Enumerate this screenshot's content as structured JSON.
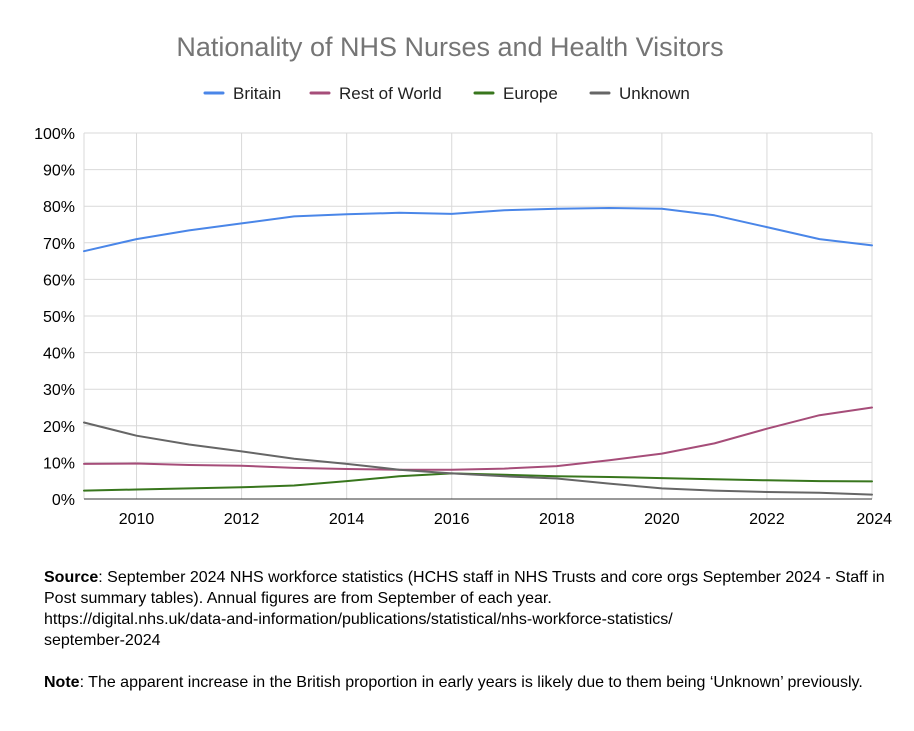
{
  "chart_data": {
    "type": "line",
    "title": "Nationality of NHS Nurses and Health Visitors",
    "xlabel": "",
    "ylabel": "",
    "x": [
      2009,
      2010,
      2011,
      2012,
      2013,
      2014,
      2015,
      2016,
      2017,
      2018,
      2019,
      2020,
      2021,
      2022,
      2023,
      2024
    ],
    "x_tick_labels": [
      "2010",
      "2012",
      "2014",
      "2016",
      "2018",
      "2020",
      "2022",
      "2024"
    ],
    "x_tick_values": [
      2010,
      2012,
      2014,
      2016,
      2018,
      2020,
      2022,
      2024
    ],
    "xlim": [
      2009,
      2024
    ],
    "y_tick_labels": [
      "0%",
      "10%",
      "20%",
      "30%",
      "40%",
      "50%",
      "60%",
      "70%",
      "80%",
      "90%",
      "100%"
    ],
    "ylim": [
      0,
      100
    ],
    "grid": true,
    "legend_position": "top",
    "series": [
      {
        "name": "Britain",
        "color": "#4a86e8",
        "values": [
          67.7,
          71.0,
          73.4,
          75.3,
          77.2,
          77.8,
          78.2,
          77.9,
          78.9,
          79.3,
          79.5,
          79.3,
          77.5,
          74.3,
          71.0,
          69.3
        ]
      },
      {
        "name": "Rest of World",
        "color": "#a64d79",
        "values": [
          9.6,
          9.7,
          9.3,
          9.1,
          8.5,
          8.2,
          8.0,
          8.0,
          8.3,
          9.0,
          10.6,
          12.4,
          15.2,
          19.2,
          22.9,
          25.0
        ]
      },
      {
        "name": "Europe",
        "color": "#38761d",
        "values": [
          2.3,
          2.6,
          2.9,
          3.2,
          3.7,
          4.9,
          6.2,
          7.0,
          6.6,
          6.2,
          6.0,
          5.7,
          5.4,
          5.1,
          4.9,
          4.8
        ]
      },
      {
        "name": "Unknown",
        "color": "#666666",
        "values": [
          20.9,
          17.3,
          14.9,
          13.0,
          11.0,
          9.6,
          8.0,
          7.0,
          6.2,
          5.6,
          4.2,
          2.9,
          2.3,
          1.9,
          1.7,
          1.2
        ]
      }
    ]
  },
  "notes": {
    "source_label": "Source",
    "source_text": ": September 2024 NHS workforce statistics (HCHS staff in NHS Trusts and core orgs September 2024 - Staff in Post summary tables). Annual figures are from September of each year.",
    "source_url_line1": "https://digital.nhs.uk/data-and-information/publications/statistical/nhs-workforce-statistics/",
    "source_url_line2": "september-2024",
    "note_label": "Note",
    "note_text": ": The apparent increase in the British proportion in early years is likely due to them being ‘Unknown’ previously."
  }
}
